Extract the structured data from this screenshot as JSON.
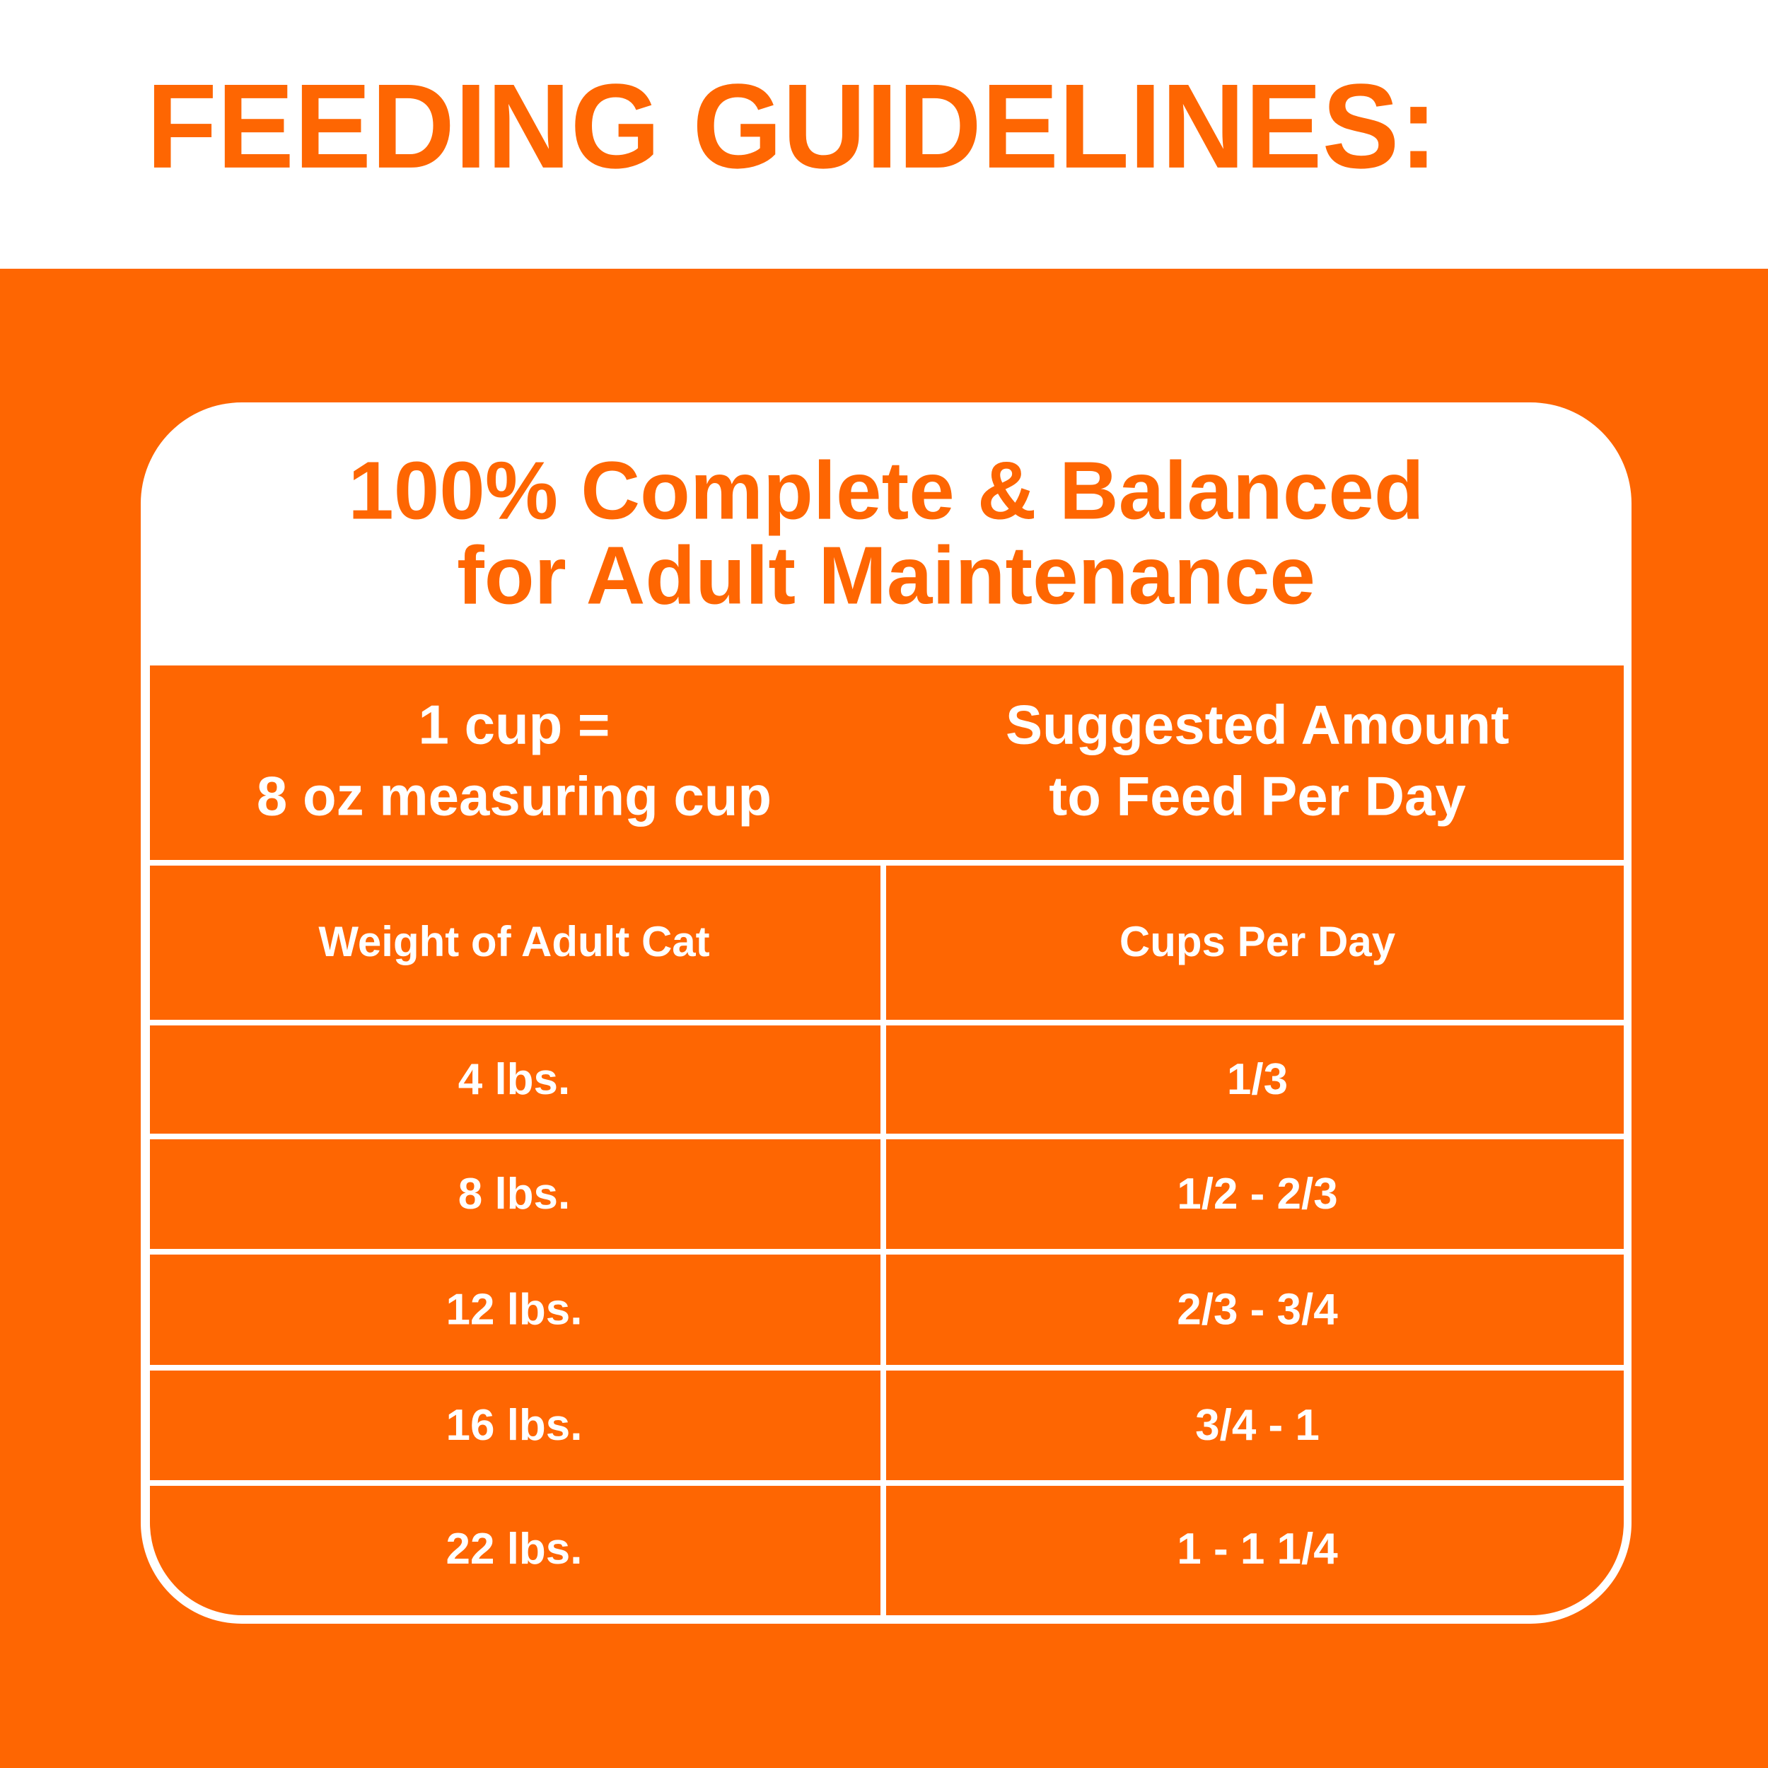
{
  "header": {
    "title": "FEEDING GUIDELINES:"
  },
  "card": {
    "heading": [
      "100% Complete & Balanced",
      "for Adult Maintenance"
    ]
  },
  "table": {
    "intro": [
      [
        "1 cup =",
        "8 oz measuring cup"
      ],
      [
        "Suggested Amount",
        "to Feed Per Day"
      ]
    ],
    "columns": [
      "Weight of Adult Cat",
      "Cups Per Day"
    ],
    "rows": [
      [
        "4 lbs.",
        "1/3"
      ],
      [
        "8 lbs.",
        "1/2 - 2/3"
      ],
      [
        "12 lbs.",
        "2/3 - 3/4"
      ],
      [
        "16 lbs.",
        "3/4 - 1"
      ],
      [
        "22 lbs.",
        "1 - 1 1/4"
      ]
    ]
  }
}
